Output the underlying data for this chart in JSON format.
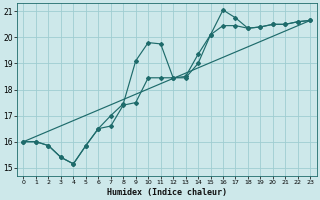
{
  "xlabel": "Humidex (Indice chaleur)",
  "background_color": "#cde8ea",
  "grid_color": "#9fcdd1",
  "line_color": "#1e6b6b",
  "xlim": [
    -0.5,
    23.5
  ],
  "ylim": [
    14.7,
    21.3
  ],
  "yticks": [
    15,
    16,
    17,
    18,
    19,
    20,
    21
  ],
  "xticks": [
    0,
    1,
    2,
    3,
    4,
    5,
    6,
    7,
    8,
    9,
    10,
    11,
    12,
    13,
    14,
    15,
    16,
    17,
    18,
    19,
    20,
    21,
    22,
    23
  ],
  "line1_x": [
    0,
    1,
    2,
    3,
    4,
    5,
    6,
    7,
    8,
    9,
    10,
    11,
    12,
    13,
    14,
    15,
    16,
    17,
    18,
    19,
    20,
    21,
    22,
    23
  ],
  "line1_y": [
    16.0,
    16.0,
    15.85,
    15.4,
    15.15,
    15.85,
    16.5,
    17.0,
    17.45,
    19.1,
    19.8,
    19.75,
    18.45,
    18.5,
    19.35,
    20.1,
    21.05,
    20.75,
    20.35,
    20.4,
    20.5,
    20.5,
    20.6,
    20.65
  ],
  "line2_x": [
    0,
    1,
    2,
    3,
    4,
    5,
    6,
    7,
    8,
    9,
    10,
    11,
    12,
    13,
    14,
    15,
    16,
    17,
    18,
    19,
    20,
    21,
    22,
    23
  ],
  "line2_y": [
    16.0,
    16.0,
    15.85,
    15.4,
    15.15,
    15.85,
    16.5,
    16.6,
    17.4,
    17.5,
    18.45,
    18.45,
    18.45,
    18.45,
    19.0,
    20.1,
    20.45,
    20.45,
    20.35,
    20.4,
    20.5,
    20.5,
    20.6,
    20.65
  ],
  "line3_x": [
    0,
    23
  ],
  "line3_y": [
    16.0,
    20.65
  ],
  "marker": "D",
  "markersize": 2.0,
  "linewidth": 0.85
}
